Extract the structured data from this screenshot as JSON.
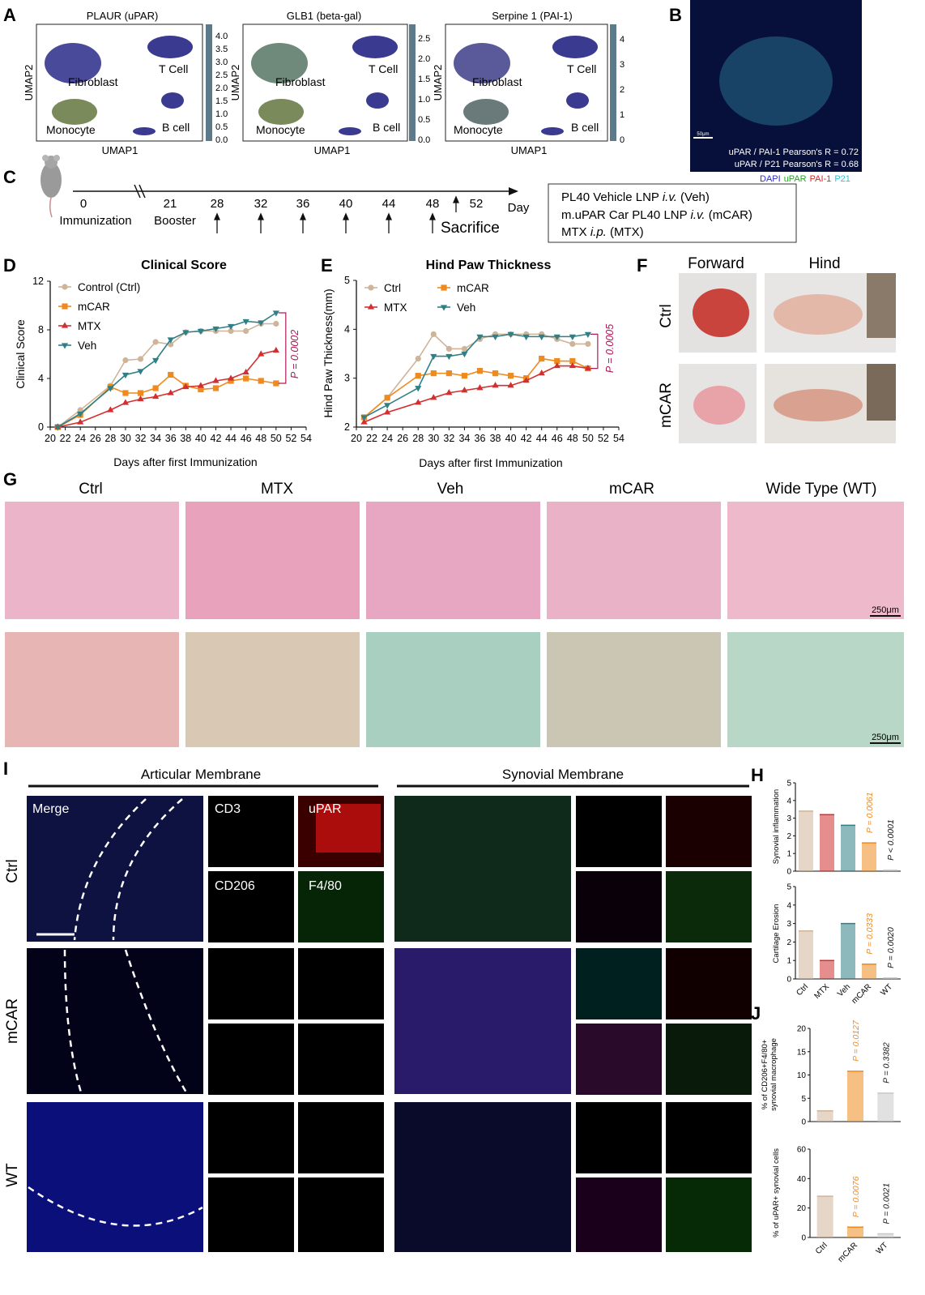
{
  "panels": {
    "A": {
      "letter": "A",
      "umap_titles": [
        "PLAUR (uPAR)",
        "GLB1 (beta-gal)",
        "Serpine 1 (PAI-1)"
      ],
      "x_label": "UMAP1",
      "y_label": "UMAP2",
      "cluster_labels": [
        "Fibroblast",
        "T Cell",
        "Monocyte",
        "B cell"
      ],
      "colorbar_ticks": [
        [
          "0.0",
          "0.5",
          "1.0",
          "1.5",
          "2.0",
          "2.5",
          "3.0",
          "3.5",
          "4.0"
        ],
        [
          "0.0",
          "0.5",
          "1.0",
          "1.5",
          "2.0",
          "2.5"
        ],
        [
          "0",
          "1",
          "2",
          "3",
          "4"
        ]
      ]
    },
    "B": {
      "letter": "B",
      "caption_1": "uPAR / PAI-1 Pearson's R = 0.72",
      "caption_2": "uPAR / P21 Pearson's R = 0.68",
      "scale_label": "50μm",
      "channels": [
        {
          "label": "DAPI",
          "color": "#2b2bd9"
        },
        {
          "label": "uPAR",
          "color": "#1fa51f"
        },
        {
          "label": "PAI-1",
          "color": "#e02020"
        },
        {
          "label": "P21",
          "color": "#21c8d8"
        }
      ]
    },
    "C": {
      "letter": "C",
      "days": [
        "0",
        "21",
        "28",
        "32",
        "36",
        "40",
        "44",
        "48",
        "52"
      ],
      "day_label": "Day",
      "immunization": "Immunization",
      "booster": "Booster",
      "sacrifice": "Sacrifice",
      "legend": [
        {
          "main": "PL40 Vehicle LNP ",
          "italic": "i.v.",
          "tail": " (Veh)"
        },
        {
          "main": "m.uPAR  Car PL40 LNP ",
          "italic": "i.v.",
          "tail": " (mCAR)"
        },
        {
          "main": "MTX ",
          "italic": "i.p.",
          "tail": " (MTX)"
        }
      ]
    },
    "D": {
      "letter": "D",
      "pvalue": "P = 0.0002"
    },
    "E": {
      "letter": "E",
      "pvalue": "P = 0.0005"
    },
    "F": {
      "letter": "F",
      "columns": [
        "Forward",
        "Hind"
      ],
      "rows": [
        "Ctrl",
        "mCAR"
      ]
    },
    "G": {
      "letter": "G",
      "groups": [
        "Ctrl",
        "MTX",
        "Veh",
        "mCAR",
        "Wide Type (WT)"
      ],
      "scale_label": "250μm"
    },
    "I": {
      "letter": "I",
      "sections": [
        "Articular Membrane",
        "Synovial Membrane"
      ],
      "rows": [
        "Ctrl",
        "mCAR",
        "WT"
      ],
      "channel_labels": [
        "Merge",
        "CD3",
        "uPAR",
        "CD206",
        "F4/80"
      ]
    },
    "H": {
      "letter": "H"
    },
    "J": {
      "letter": "J"
    }
  },
  "colors": {
    "ctrl": "#cfb49a",
    "mcar": "#ef8a1f",
    "mtx": "#d23030",
    "veh": "#2f7f86",
    "wt": "#c8c8c8",
    "pval": "#b0195a"
  },
  "chart_data": [
    {
      "id": "D",
      "type": "line",
      "title": "Clinical Score",
      "xlabel": "Days after first Immunization",
      "ylabel": "Clinical Score",
      "xlim": [
        20,
        54
      ],
      "ylim": [
        0,
        12
      ],
      "xticks": [
        20,
        22,
        24,
        26,
        28,
        30,
        32,
        34,
        36,
        38,
        40,
        42,
        44,
        46,
        48,
        50,
        52,
        54
      ],
      "yticks": [
        0,
        4,
        8,
        12
      ],
      "x": [
        21,
        24,
        28,
        30,
        32,
        34,
        36,
        38,
        40,
        42,
        44,
        46,
        48,
        50
      ],
      "legend_position": "top-left",
      "series": [
        {
          "name": "Control (Ctrl)",
          "color_key": "ctrl",
          "marker": "circle",
          "values": [
            0,
            1.4,
            3.4,
            5.5,
            5.6,
            7.0,
            6.8,
            7.8,
            7.9,
            7.9,
            7.9,
            7.9,
            8.5,
            8.5
          ]
        },
        {
          "name": "mCAR",
          "color_key": "mcar",
          "marker": "square",
          "values": [
            0,
            1.0,
            3.3,
            2.8,
            2.8,
            3.2,
            4.3,
            3.4,
            3.1,
            3.2,
            3.8,
            4.0,
            3.8,
            3.6
          ]
        },
        {
          "name": "MTX",
          "color_key": "mtx",
          "marker": "triangle",
          "values": [
            0,
            0.4,
            1.4,
            2.0,
            2.3,
            2.5,
            2.8,
            3.3,
            3.4,
            3.8,
            4.0,
            4.5,
            6.0,
            6.3
          ]
        },
        {
          "name": "Veh",
          "color_key": "veh",
          "marker": "triangle-down",
          "values": [
            0,
            1.1,
            3.2,
            4.3,
            4.6,
            5.5,
            7.2,
            7.8,
            7.9,
            8.1,
            8.3,
            8.7,
            8.6,
            9.4
          ]
        }
      ],
      "pvalue": "P = 0.0002"
    },
    {
      "id": "E",
      "type": "line",
      "title": "Hind Paw Thickness",
      "xlabel": "Days after first Immunization",
      "ylabel": "Hind Paw Thickness(mm)",
      "xlim": [
        20,
        54
      ],
      "ylim": [
        2,
        5
      ],
      "xticks": [
        20,
        22,
        24,
        26,
        28,
        30,
        32,
        34,
        36,
        38,
        40,
        42,
        44,
        46,
        48,
        50,
        52,
        54
      ],
      "yticks": [
        2,
        3,
        4,
        5
      ],
      "x": [
        21,
        24,
        28,
        30,
        32,
        34,
        36,
        38,
        40,
        42,
        44,
        46,
        48,
        50
      ],
      "legend_position": "top-left",
      "series": [
        {
          "name": "Ctrl",
          "color_key": "ctrl",
          "marker": "circle",
          "values": [
            2.2,
            2.6,
            3.4,
            3.9,
            3.6,
            3.6,
            3.8,
            3.9,
            3.9,
            3.9,
            3.9,
            3.8,
            3.7,
            3.7
          ]
        },
        {
          "name": "mCAR",
          "color_key": "mcar",
          "marker": "square",
          "values": [
            2.2,
            2.6,
            3.05,
            3.1,
            3.1,
            3.05,
            3.15,
            3.1,
            3.05,
            3.0,
            3.4,
            3.35,
            3.35,
            3.2
          ]
        },
        {
          "name": "MTX",
          "color_key": "mtx",
          "marker": "triangle",
          "values": [
            2.1,
            2.3,
            2.5,
            2.6,
            2.7,
            2.75,
            2.8,
            2.85,
            2.85,
            2.95,
            3.1,
            3.25,
            3.25,
            3.2
          ]
        },
        {
          "name": "Veh",
          "color_key": "veh",
          "marker": "triangle-down",
          "values": [
            2.2,
            2.45,
            2.8,
            3.45,
            3.45,
            3.5,
            3.85,
            3.85,
            3.9,
            3.85,
            3.85,
            3.85,
            3.85,
            3.9
          ]
        }
      ],
      "pvalue": "P = 0.0005"
    },
    {
      "id": "H1",
      "type": "bar",
      "ylabel": "Synovial inflammation",
      "ylim": [
        0,
        5
      ],
      "yticks": [
        0,
        1,
        2,
        3,
        4,
        5
      ],
      "categories": [
        "Ctrl",
        "MTX",
        "Veh",
        "mCAR",
        "WT"
      ],
      "color_keys": [
        "ctrl",
        "mtx",
        "veh",
        "mcar",
        "wt"
      ],
      "values": [
        3.4,
        3.2,
        2.6,
        1.6,
        0.05
      ],
      "annotations": [
        {
          "category": "mCAR",
          "text": "P = 0.0061",
          "color_key": "mcar"
        },
        {
          "category": "WT",
          "text": "P < 0.0001",
          "color_key": "black"
        }
      ]
    },
    {
      "id": "H2",
      "type": "bar",
      "ylabel": "Cartilage Erosion",
      "ylim": [
        0,
        5
      ],
      "yticks": [
        0,
        1,
        2,
        3,
        4,
        5
      ],
      "categories": [
        "Ctrl",
        "MTX",
        "Veh",
        "mCAR",
        "WT"
      ],
      "color_keys": [
        "ctrl",
        "mtx",
        "veh",
        "mcar",
        "wt"
      ],
      "values": [
        2.6,
        1.0,
        3.0,
        0.8,
        0.05
      ],
      "annotations": [
        {
          "category": "mCAR",
          "text": "P = 0.0333",
          "color_key": "mcar"
        },
        {
          "category": "WT",
          "text": "P = 0.0020",
          "color_key": "black"
        }
      ]
    },
    {
      "id": "J1",
      "type": "bar",
      "ylabel": "% of CD206+F4/80+ synovial macrophage",
      "ylim": [
        0,
        20
      ],
      "yticks": [
        0,
        5,
        10,
        15,
        20
      ],
      "categories": [
        "Ctrl",
        "mCAR",
        "WT"
      ],
      "color_keys": [
        "ctrl",
        "mcar",
        "wt"
      ],
      "values": [
        2.3,
        10.8,
        6.1
      ],
      "annotations": [
        {
          "category": "mCAR",
          "text": "P = 0.0127",
          "color_key": "mcar"
        },
        {
          "category": "WT",
          "text": "P = 0.3382",
          "color_key": "black"
        }
      ]
    },
    {
      "id": "J2",
      "type": "bar",
      "ylabel": "% of uPAR+ synovial cells",
      "ylim": [
        0,
        60
      ],
      "yticks": [
        0,
        20,
        40,
        60
      ],
      "categories": [
        "Ctrl",
        "mCAR",
        "WT"
      ],
      "color_keys": [
        "ctrl",
        "mcar",
        "wt"
      ],
      "values": [
        28,
        7,
        2.5
      ],
      "annotations": [
        {
          "category": "mCAR",
          "text": "P = 0.0076",
          "color_key": "mcar"
        },
        {
          "category": "WT",
          "text": "P = 0.0021",
          "color_key": "black"
        }
      ]
    }
  ]
}
